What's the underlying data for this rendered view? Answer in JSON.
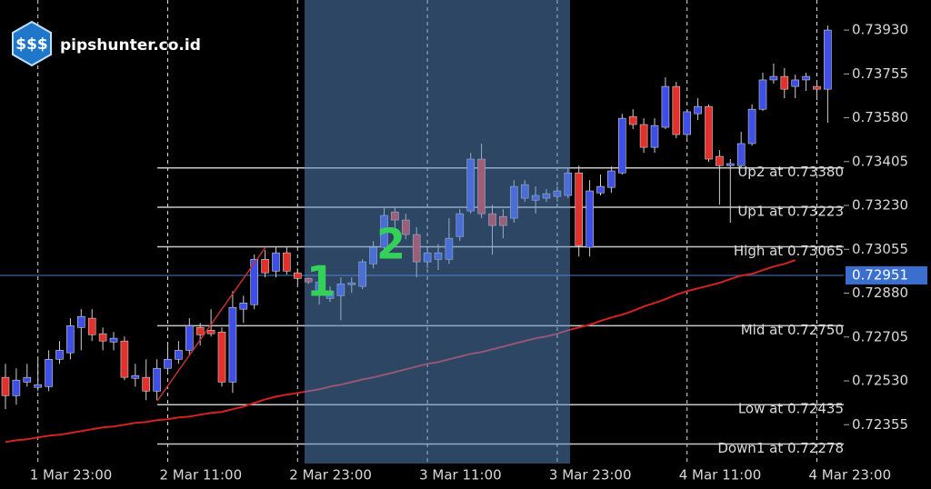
{
  "chart_data": {
    "type": "candlestick",
    "brand": "pipshunter.co.id",
    "annotations": [
      "1",
      "2"
    ],
    "categories": [
      null,
      null,
      null,
      "1 Mar 23:00",
      null,
      null,
      null,
      null,
      null,
      null,
      null,
      null,
      null,
      null,
      null,
      "2 Mar 11:00",
      null,
      null,
      null,
      null,
      null,
      null,
      null,
      null,
      null,
      null,
      null,
      "2 Mar 23:00",
      null,
      null,
      null,
      null,
      null,
      null,
      null,
      null,
      null,
      null,
      null,
      "3 Mar 11:00",
      null,
      null,
      null,
      null,
      null,
      null,
      null,
      null,
      null,
      null,
      null,
      "3 Mar 23:00",
      null,
      null,
      null,
      null,
      null,
      null,
      null,
      null,
      null,
      null,
      null,
      "4 Mar 11:00",
      null,
      null,
      null,
      null,
      null,
      null,
      null,
      null,
      null,
      null,
      null,
      "4 Mar 23:00",
      null
    ],
    "open": [
      0.72544,
      0.72471,
      0.72525,
      0.72504,
      0.72507,
      0.72616,
      0.72642,
      0.72743,
      0.7278,
      0.72718,
      0.72685,
      0.72689,
      0.7254,
      0.72544,
      0.72489,
      0.7258,
      0.72616,
      0.72652,
      0.72743,
      0.72732,
      0.72725,
      0.72525,
      0.72816,
      0.72834,
      0.73015,
      0.72968,
      0.73041,
      0.72961,
      0.72939,
      0.72881,
      0.72859,
      0.7287,
      0.72914,
      0.72907,
      0.72997,
      0.73063,
      0.73204,
      0.73172,
      0.73114,
      0.73005,
      0.73015,
      0.73015,
      0.73106,
      0.73208,
      0.73415,
      0.73197,
      0.73186,
      0.73179,
      0.73259,
      0.73251,
      0.73259,
      0.73266,
      0.7327,
      0.7336,
      0.73063,
      0.7328,
      0.73302,
      0.7336,
      0.73585,
      0.73553,
      0.73462,
      0.73542,
      0.73705,
      0.73513,
      0.73596,
      0.73625,
      0.73426,
      0.73389,
      0.73389,
      0.73477,
      0.73614,
      0.73731,
      0.73745,
      0.73705,
      0.73731,
      0.73705,
      0.73694
    ],
    "high": [
      0.72598,
      0.7258,
      0.72598,
      0.72616,
      0.72652,
      0.72689,
      0.7278,
      0.72816,
      0.72816,
      0.72743,
      0.72725,
      0.72707,
      0.72598,
      0.72616,
      0.72616,
      0.72671,
      0.72689,
      0.7278,
      0.72761,
      0.72816,
      0.72743,
      0.72888,
      0.7287,
      0.73034,
      0.73052,
      0.73063,
      0.73063,
      0.72979,
      0.72943,
      0.72943,
      0.72907,
      0.72943,
      0.72943,
      0.73015,
      0.73088,
      0.73222,
      0.73222,
      0.73197,
      0.73143,
      0.73063,
      0.73077,
      0.73179,
      0.73215,
      0.7344,
      0.73477,
      0.73233,
      0.73215,
      0.73331,
      0.73331,
      0.73306,
      0.73295,
      0.73306,
      0.73378,
      0.73389,
      0.73331,
      0.73353,
      0.73386,
      0.73596,
      0.73614,
      0.73578,
      0.73578,
      0.73741,
      0.73723,
      0.73614,
      0.73658,
      0.73633,
      0.73451,
      0.73415,
      0.73524,
      0.73633,
      0.7376,
      0.73796,
      0.73778,
      0.73752,
      0.7376,
      0.73731,
      0.73948
    ],
    "low": [
      0.72417,
      0.72435,
      0.72507,
      0.72489,
      0.72489,
      0.72598,
      0.72616,
      0.72652,
      0.72689,
      0.72652,
      0.72652,
      0.72533,
      0.72507,
      0.72453,
      0.72453,
      0.72562,
      0.72598,
      0.72634,
      0.72671,
      0.72707,
      0.72507,
      0.72482,
      0.72761,
      0.72816,
      0.72943,
      0.72943,
      0.72954,
      0.72917,
      0.72917,
      0.72834,
      0.72845,
      0.72772,
      0.72881,
      0.72896,
      0.72979,
      0.73052,
      0.73124,
      0.73095,
      0.72943,
      0.72979,
      0.72972,
      0.72997,
      0.73088,
      0.73197,
      0.73179,
      0.73034,
      0.73099,
      0.73161,
      0.73244,
      0.73197,
      0.73244,
      0.73244,
      0.73259,
      0.73026,
      0.73026,
      0.7327,
      0.7328,
      0.73353,
      0.73535,
      0.7344,
      0.7344,
      0.73535,
      0.73498,
      0.73498,
      0.73571,
      0.73404,
      0.73233,
      0.73161,
      0.73378,
      0.73469,
      0.73607,
      0.73716,
      0.73658,
      0.73658,
      0.73687,
      0.73651,
      0.7356
    ],
    "close": [
      0.72471,
      0.72533,
      0.72544,
      0.72515,
      0.72616,
      0.72652,
      0.7275,
      0.72787,
      0.72714,
      0.72689,
      0.727,
      0.72544,
      0.72551,
      0.72489,
      0.7258,
      0.72616,
      0.72652,
      0.7275,
      0.72714,
      0.72718,
      0.72525,
      0.72823,
      0.72841,
      0.73015,
      0.72961,
      0.73041,
      0.72968,
      0.72939,
      0.72925,
      0.72925,
      0.72888,
      0.72917,
      0.72921,
      0.73005,
      0.73063,
      0.7319,
      0.73172,
      0.73114,
      0.73005,
      0.73041,
      0.73041,
      0.73099,
      0.73197,
      0.73415,
      0.73197,
      0.7315,
      0.7315,
      0.73306,
      0.73313,
      0.7327,
      0.73277,
      0.73288,
      0.7336,
      0.7307,
      0.73288,
      0.73306,
      0.73368,
      0.73578,
      0.73553,
      0.73462,
      0.73549,
      0.73705,
      0.73513,
      0.73604,
      0.73625,
      0.73415,
      0.73389,
      0.73397,
      0.73477,
      0.73614,
      0.73731,
      0.73745,
      0.73694,
      0.73731,
      0.73745,
      0.73694,
      0.7393
    ],
    "up_color": "#3d4fe6",
    "down_color": "#e3302b",
    "moving_average": {
      "color": "#d42222",
      "values": [
        0.72286,
        0.72293,
        0.72297,
        0.72304,
        0.72311,
        0.72315,
        0.72322,
        0.72329,
        0.72337,
        0.72344,
        0.72348,
        0.72355,
        0.72362,
        0.72366,
        0.72373,
        0.72377,
        0.72384,
        0.72387,
        0.72395,
        0.72402,
        0.72406,
        0.72417,
        0.72427,
        0.72442,
        0.72456,
        0.72467,
        0.72475,
        0.72482,
        0.72489,
        0.72496,
        0.72507,
        0.72515,
        0.72525,
        0.72536,
        0.72544,
        0.72554,
        0.72565,
        0.72576,
        0.72587,
        0.72598,
        0.72605,
        0.72616,
        0.72627,
        0.72638,
        0.72645,
        0.72656,
        0.72667,
        0.72678,
        0.72689,
        0.727,
        0.72707,
        0.72718,
        0.72732,
        0.72743,
        0.72754,
        0.72769,
        0.72783,
        0.72794,
        0.72809,
        0.72827,
        0.72841,
        0.72856,
        0.72874,
        0.72888,
        0.72899,
        0.7291,
        0.72921,
        0.72936,
        0.7295,
        0.72957,
        0.72972,
        0.72986,
        0.72997,
        0.73012,
        null,
        null,
        null
      ]
    },
    "levels": [
      {
        "label": "Up2 at 0.73380",
        "value": 0.7338
      },
      {
        "label": "Up1 at 0.73223",
        "value": 0.73223
      },
      {
        "label": "High at 0.73065",
        "value": 0.73065
      },
      {
        "label": "Mid at 0.72750",
        "value": 0.7275
      },
      {
        "label": "Low at 0.72435",
        "value": 0.72435
      },
      {
        "label": "Down1 at 0.72278",
        "value": 0.72278
      }
    ],
    "current_price": 0.72951,
    "ylim": [
      0.722,
      0.7405
    ],
    "yticks": [
      {
        "value": 0.7393,
        "label": "0.73930"
      },
      0.73755,
      {
        "value": 0.7358,
        "label": "0.73580"
      },
      0.73405,
      {
        "value": 0.7323,
        "label": "0.73230"
      },
      0.73055,
      {
        "value": 0.7288,
        "label": "0.72880"
      },
      0.72705,
      {
        "value": 0.7253,
        "label": "0.72530"
      },
      0.72355
    ]
  }
}
